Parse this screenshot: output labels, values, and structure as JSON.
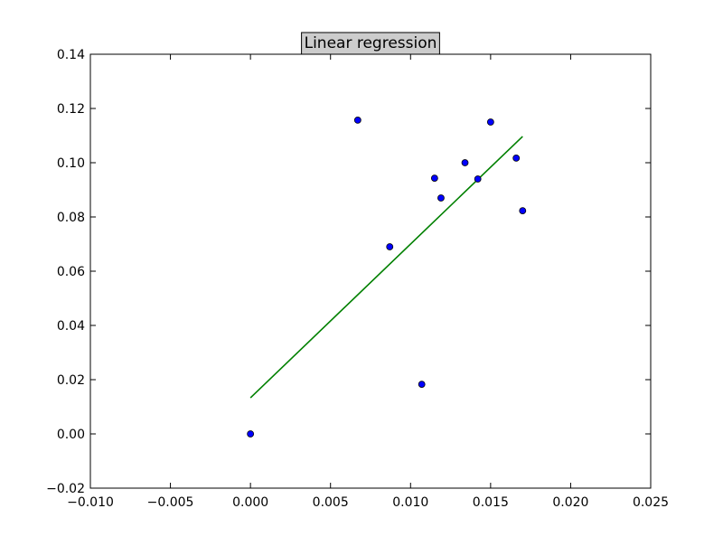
{
  "chart_data": {
    "type": "scatter",
    "title": "Linear regression",
    "xlabel": "",
    "ylabel": "",
    "xlim": [
      -0.01,
      0.025
    ],
    "ylim": [
      -0.02,
      0.14
    ],
    "x_ticks": [
      "−0.010",
      "−0.005",
      "0.000",
      "0.005",
      "0.010",
      "0.015",
      "0.020",
      "0.025"
    ],
    "y_ticks": [
      "−0.02",
      "0.00",
      "0.02",
      "0.04",
      "0.06",
      "0.08",
      "0.10",
      "0.12",
      "0.14"
    ],
    "x_tick_values": [
      -0.01,
      -0.005,
      0.0,
      0.005,
      0.01,
      0.015,
      0.02,
      0.025
    ],
    "y_tick_values": [
      -0.02,
      0.0,
      0.02,
      0.04,
      0.06,
      0.08,
      0.1,
      0.12,
      0.14
    ],
    "grid": false,
    "colors": {
      "points_fill": "#0000ff",
      "points_edge": "#000000",
      "line": "#008000",
      "title_box": "#cccccc"
    },
    "points": [
      {
        "x": 0.0,
        "y": 0.0
      },
      {
        "x": 0.0067,
        "y": 0.1157
      },
      {
        "x": 0.0087,
        "y": 0.069
      },
      {
        "x": 0.0107,
        "y": 0.0183
      },
      {
        "x": 0.0115,
        "y": 0.0943
      },
      {
        "x": 0.0119,
        "y": 0.087
      },
      {
        "x": 0.0134,
        "y": 0.1
      },
      {
        "x": 0.0142,
        "y": 0.094
      },
      {
        "x": 0.015,
        "y": 0.115
      },
      {
        "x": 0.0166,
        "y": 0.1017
      },
      {
        "x": 0.017,
        "y": 0.0823
      }
    ],
    "regression_line": [
      {
        "x": 0.0,
        "y": 0.0133
      },
      {
        "x": 0.017,
        "y": 0.1097
      }
    ]
  }
}
